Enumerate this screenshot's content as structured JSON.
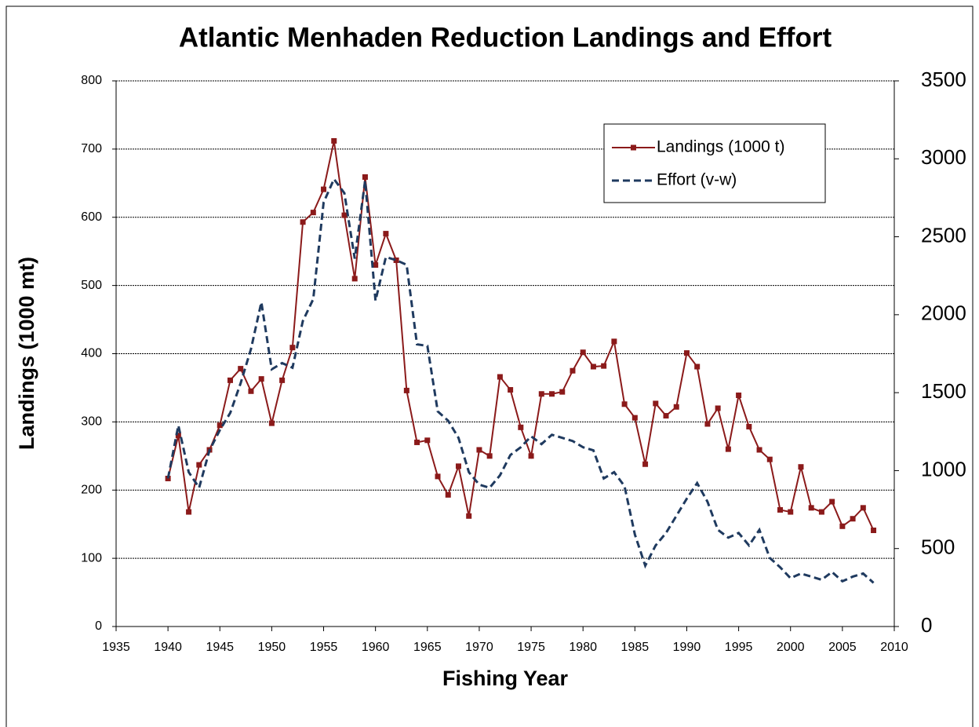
{
  "chart_data": {
    "type": "line",
    "title": "Atlantic Menhaden Reduction Landings and Effort",
    "xlabel": "Fishing Year",
    "ylabel": "Landings (1000 mt)",
    "x": [
      1940,
      1941,
      1942,
      1943,
      1944,
      1945,
      1946,
      1947,
      1948,
      1949,
      1950,
      1951,
      1952,
      1953,
      1954,
      1955,
      1956,
      1957,
      1958,
      1959,
      1960,
      1961,
      1962,
      1963,
      1964,
      1965,
      1966,
      1967,
      1968,
      1969,
      1970,
      1971,
      1972,
      1973,
      1974,
      1975,
      1976,
      1977,
      1978,
      1979,
      1980,
      1981,
      1982,
      1983,
      1984,
      1985,
      1986,
      1987,
      1988,
      1989,
      1990,
      1991,
      1992,
      1993,
      1994,
      1995,
      1996,
      1997,
      1998,
      1999,
      2000,
      2001,
      2002,
      2003,
      2004,
      2005,
      2006,
      2007,
      2008
    ],
    "series": [
      {
        "name": "Landings (1000 t)",
        "color": "#8b1a1a",
        "marker": "square",
        "dash": false,
        "axis": "y",
        "values": [
          217,
          280,
          168,
          237,
          259,
          295,
          361,
          378,
          345,
          363,
          298,
          361,
          409,
          593,
          607,
          641,
          712,
          603,
          510,
          659,
          530,
          576,
          537,
          346,
          270,
          273,
          220,
          193,
          235,
          162,
          259,
          250,
          366,
          347,
          292,
          250,
          341,
          341,
          344,
          375,
          402,
          381,
          382,
          418,
          326,
          306,
          238,
          327,
          309,
          322,
          401,
          381,
          297,
          320,
          260,
          339,
          293,
          259,
          245,
          171,
          168,
          234,
          174,
          168,
          183,
          147,
          158,
          174,
          141
        ]
      },
      {
        "name": "Effort (v-w)",
        "color": "#1f3a5f",
        "marker": "none",
        "dash": true,
        "axis": "y2",
        "values": [
          950,
          1290,
          990,
          890,
          1130,
          1260,
          1370,
          1560,
          1780,
          2080,
          1650,
          1690,
          1660,
          1960,
          2100,
          2720,
          2870,
          2780,
          2360,
          2860,
          2090,
          2370,
          2350,
          2320,
          1810,
          1800,
          1380,
          1320,
          1210,
          990,
          910,
          890,
          970,
          1100,
          1150,
          1220,
          1170,
          1230,
          1210,
          1190,
          1150,
          1130,
          950,
          990,
          900,
          590,
          390,
          520,
          600,
          710,
          820,
          920,
          800,
          620,
          570,
          600,
          520,
          620,
          440,
          380,
          310,
          340,
          320,
          300,
          350,
          290,
          320,
          340,
          280
        ]
      }
    ],
    "xlim": [
      1935,
      2010
    ],
    "xticks": [
      1935,
      1940,
      1945,
      1950,
      1955,
      1960,
      1965,
      1970,
      1975,
      1980,
      1985,
      1990,
      1995,
      2000,
      2005,
      2010
    ],
    "ylim": [
      0,
      800
    ],
    "yticks": [
      0,
      100,
      200,
      300,
      400,
      500,
      600,
      700,
      800
    ],
    "y2lim": [
      0,
      3500
    ],
    "y2ticks": [
      0,
      500,
      1000,
      1500,
      2000,
      2500,
      3000,
      3500
    ],
    "grid": true,
    "legend": "top-right"
  }
}
